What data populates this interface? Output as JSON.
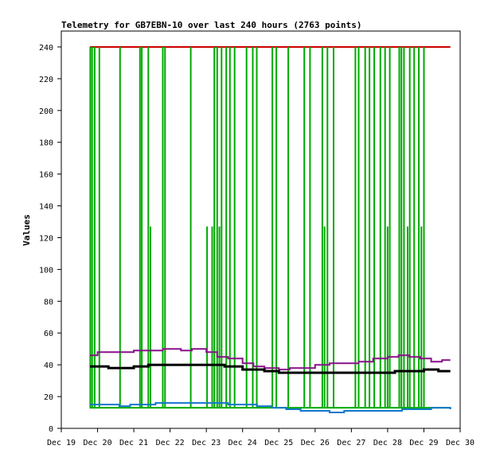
{
  "chart_data": {
    "type": "line",
    "title": "Telemetry for GB7EBN-10 over last 240 hours (2763 points)",
    "xlabel": "",
    "ylabel": "Values",
    "ylim": [
      0,
      250
    ],
    "yticks": [
      0,
      20,
      40,
      60,
      80,
      100,
      120,
      140,
      160,
      180,
      200,
      220,
      240
    ],
    "xlim": [
      0,
      11
    ],
    "xticks": [
      {
        "label": "Dec 19",
        "x": 0
      },
      {
        "label": "Dec 20",
        "x": 1
      },
      {
        "label": "Dec 21",
        "x": 2
      },
      {
        "label": "Dec 22",
        "x": 3
      },
      {
        "label": "Dec 23",
        "x": 4
      },
      {
        "label": "Dec 24",
        "x": 5
      },
      {
        "label": "Dec 25",
        "x": 6
      },
      {
        "label": "Dec 26",
        "x": 7
      },
      {
        "label": "Dec 27",
        "x": 8
      },
      {
        "label": "Dec 28",
        "x": 9
      },
      {
        "label": "Dec 29",
        "x": 10
      },
      {
        "label": "Dec 30",
        "x": 11
      }
    ],
    "series": [
      {
        "name": "red",
        "color": "#cc0000",
        "x": [
          0.79,
          10.73
        ],
        "y": [
          240,
          240
        ]
      },
      {
        "name": "green",
        "color": "#00aa00",
        "x0": 0.79,
        "x1": 10.73,
        "base": 13,
        "spikes": [
          {
            "x": 0.8,
            "v": 240
          },
          {
            "x": 0.85,
            "v": 240
          },
          {
            "x": 0.92,
            "v": 240
          },
          {
            "x": 1.05,
            "v": 240
          },
          {
            "x": 1.62,
            "v": 240
          },
          {
            "x": 2.17,
            "v": 240
          },
          {
            "x": 2.22,
            "v": 240
          },
          {
            "x": 2.4,
            "v": 240
          },
          {
            "x": 2.46,
            "v": 127
          },
          {
            "x": 2.8,
            "v": 240
          },
          {
            "x": 2.86,
            "v": 240
          },
          {
            "x": 3.57,
            "v": 240
          },
          {
            "x": 4.02,
            "v": 127
          },
          {
            "x": 4.16,
            "v": 127
          },
          {
            "x": 4.22,
            "v": 240
          },
          {
            "x": 4.3,
            "v": 240
          },
          {
            "x": 4.36,
            "v": 127
          },
          {
            "x": 4.42,
            "v": 240
          },
          {
            "x": 4.55,
            "v": 240
          },
          {
            "x": 4.65,
            "v": 240
          },
          {
            "x": 4.78,
            "v": 240
          },
          {
            "x": 5.11,
            "v": 240
          },
          {
            "x": 5.28,
            "v": 240
          },
          {
            "x": 5.39,
            "v": 240
          },
          {
            "x": 5.82,
            "v": 240
          },
          {
            "x": 5.93,
            "v": 240
          },
          {
            "x": 6.26,
            "v": 240
          },
          {
            "x": 6.7,
            "v": 240
          },
          {
            "x": 6.86,
            "v": 240
          },
          {
            "x": 7.2,
            "v": 240
          },
          {
            "x": 7.26,
            "v": 127
          },
          {
            "x": 7.34,
            "v": 240
          },
          {
            "x": 7.51,
            "v": 240
          },
          {
            "x": 8.11,
            "v": 240
          },
          {
            "x": 8.2,
            "v": 240
          },
          {
            "x": 8.38,
            "v": 240
          },
          {
            "x": 8.5,
            "v": 240
          },
          {
            "x": 8.63,
            "v": 240
          },
          {
            "x": 8.8,
            "v": 240
          },
          {
            "x": 8.93,
            "v": 240
          },
          {
            "x": 9.0,
            "v": 127
          },
          {
            "x": 9.06,
            "v": 240
          },
          {
            "x": 9.32,
            "v": 240
          },
          {
            "x": 9.38,
            "v": 240
          },
          {
            "x": 9.45,
            "v": 240
          },
          {
            "x": 9.55,
            "v": 127
          },
          {
            "x": 9.61,
            "v": 240
          },
          {
            "x": 9.73,
            "v": 240
          },
          {
            "x": 9.86,
            "v": 240
          },
          {
            "x": 9.93,
            "v": 127
          },
          {
            "x": 10.0,
            "v": 240
          }
        ]
      },
      {
        "name": "purple",
        "color": "#881188",
        "x": [
          0.79,
          1.0,
          1.3,
          1.6,
          2.0,
          2.4,
          2.8,
          3.0,
          3.3,
          3.6,
          4.0,
          4.3,
          4.6,
          5.0,
          5.3,
          5.6,
          6.0,
          6.3,
          6.6,
          7.0,
          7.4,
          7.8,
          8.2,
          8.6,
          9.0,
          9.3,
          9.6,
          9.9,
          10.2,
          10.5,
          10.73
        ],
        "y": [
          46,
          48,
          48,
          48,
          49,
          49,
          50,
          50,
          49,
          50,
          48,
          45,
          44,
          41,
          39,
          38,
          37,
          38,
          38,
          40,
          41,
          41,
          42,
          44,
          45,
          46,
          45,
          44,
          42,
          43,
          43
        ]
      },
      {
        "name": "black",
        "color": "#000000",
        "x": [
          0.79,
          1.0,
          1.3,
          1.6,
          2.0,
          2.4,
          2.8,
          3.0,
          3.5,
          4.0,
          4.5,
          5.0,
          5.3,
          5.6,
          6.0,
          6.4,
          6.8,
          7.2,
          7.6,
          8.0,
          8.4,
          8.8,
          9.2,
          9.6,
          10.0,
          10.4,
          10.73
        ],
        "y": [
          39,
          39,
          38,
          38,
          39,
          40,
          40,
          40,
          40,
          40,
          39,
          37,
          37,
          36,
          35,
          35,
          35,
          35,
          35,
          35,
          35,
          35,
          36,
          36,
          37,
          36,
          36
        ]
      },
      {
        "name": "blue",
        "color": "#1177cc",
        "x": [
          0.79,
          1.0,
          1.3,
          1.6,
          1.9,
          2.3,
          2.6,
          3.0,
          3.4,
          3.8,
          4.2,
          4.6,
          5.0,
          5.4,
          5.8,
          6.2,
          6.6,
          7.0,
          7.4,
          7.8,
          8.2,
          8.6,
          9.0,
          9.4,
          9.8,
          10.2,
          10.73
        ],
        "y": [
          15,
          15,
          15,
          14,
          15,
          15,
          16,
          16,
          16,
          16,
          16,
          15,
          15,
          14,
          13,
          12,
          11,
          11,
          10,
          11,
          11,
          11,
          11,
          12,
          12,
          13,
          12
        ]
      }
    ]
  }
}
